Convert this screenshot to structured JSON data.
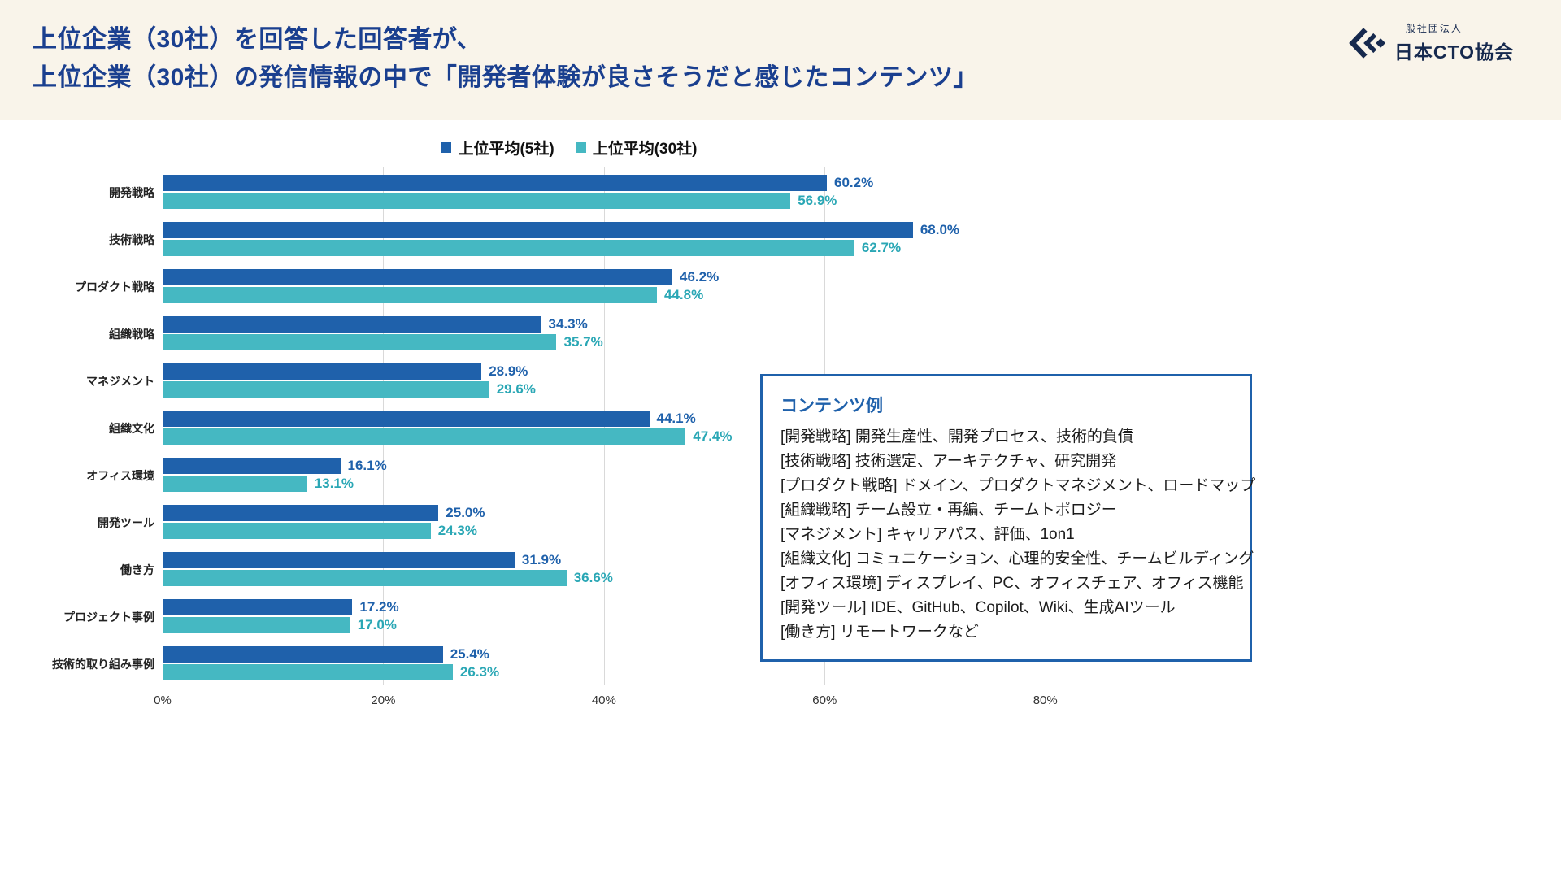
{
  "header": {
    "title_line1": "上位企業（30社）を回答した回答者が、",
    "title_line2": "上位企業（30社）の発信情報の中で「開発者体験が良さそうだと感じたコンテンツ」",
    "logo": {
      "org_type": "一般社団法人",
      "org_name": "日本CTO協会"
    }
  },
  "colors": {
    "header_background": "#f9f4ea",
    "title_blue": "#1a3f8f",
    "series1_blue": "#1f61ab",
    "series2_teal": "#45b8c2",
    "series2_label_teal": "#2aa7b5",
    "box_border_blue": "#1f61ab"
  },
  "chart_data": {
    "type": "bar",
    "orientation": "horizontal",
    "title": "",
    "categories": [
      "開発戦略",
      "技術戦略",
      "プロダクト戦略",
      "組織戦略",
      "マネジメント",
      "組織文化",
      "オフィス環境",
      "開発ツール",
      "働き方",
      "プロジェクト事例",
      "技術的取り組み事例"
    ],
    "series": [
      {
        "name": "上位平均(5社)",
        "color": "#1f61ab",
        "label_color": "#1f61ab",
        "values": [
          60.2,
          68.0,
          46.2,
          34.3,
          28.9,
          44.1,
          16.1,
          25.0,
          31.9,
          17.2,
          25.4
        ]
      },
      {
        "name": "上位平均(30社)",
        "color": "#45b8c2",
        "label_color": "#2aa7b5",
        "values": [
          56.9,
          62.7,
          44.8,
          35.7,
          29.6,
          47.4,
          13.1,
          24.3,
          36.6,
          17.0,
          26.3
        ]
      }
    ],
    "x_ticks": [
      0,
      20,
      40,
      60,
      80
    ],
    "axis_max": 98,
    "value_suffix": "%",
    "grid": true,
    "legend_position": "top"
  },
  "content_box": {
    "title": "コンテンツ例",
    "items": [
      "[開発戦略] 開発生産性、開発プロセス、技術的負債",
      "[技術戦略] 技術選定、アーキテクチャ、研究開発",
      "[プロダクト戦略] ドメイン、プロダクトマネジメント、ロードマップ",
      "[組織戦略] チーム設立・再編、チームトポロジー",
      "[マネジメント] キャリアパス、評価、1on1",
      "[組織文化] コミュニケーション、心理的安全性、チームビルディング",
      "[オフィス環境] ディスプレイ、PC、オフィスチェア、オフィス機能",
      "[開発ツール] IDE、GitHub、Copilot、Wiki、生成AIツール",
      "[働き方] リモートワークなど"
    ]
  }
}
